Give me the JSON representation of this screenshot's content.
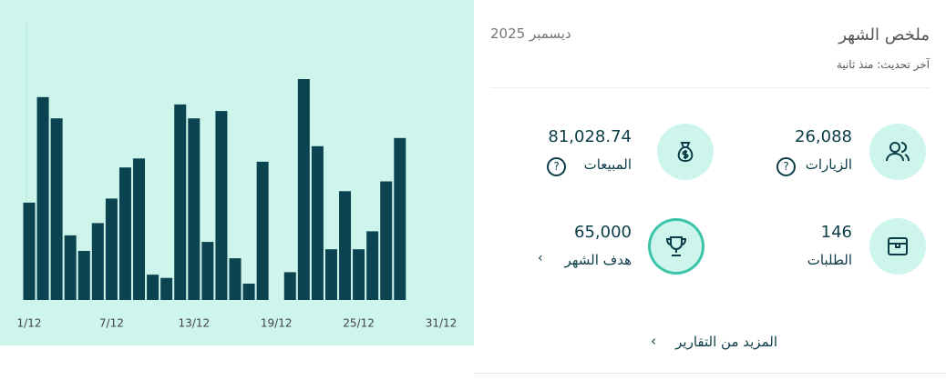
{
  "chart_data": {
    "type": "bar",
    "categories": [
      "1/12",
      null,
      null,
      null,
      null,
      null,
      "7/12",
      null,
      null,
      null,
      null,
      null,
      "13/12",
      null,
      null,
      null,
      null,
      null,
      "19/12",
      null,
      null,
      null,
      null,
      null,
      "25/12",
      null,
      null,
      null,
      null,
      null,
      "31/12"
    ],
    "values": [
      119,
      248,
      222,
      79,
      60,
      94,
      124,
      162,
      173,
      31,
      27,
      239,
      222,
      71,
      231,
      51,
      20,
      169,
      0,
      34,
      270,
      188,
      62,
      133,
      62,
      84,
      145,
      198,
      null,
      null,
      null
    ],
    "color": "#0b4450",
    "ylim": [
      0,
      300
    ]
  },
  "summary": {
    "title": "ملخص الشهر",
    "period": "ديسمبر 2025",
    "updated": "آخر تحديث: منذ ثانية",
    "stats": [
      {
        "value": "26,088",
        "label": "الزيارات"
      },
      {
        "value": "81,028.74",
        "label": "المبيعات"
      },
      {
        "value": "146",
        "label": "الطلبات"
      },
      {
        "value": "65,000",
        "label": "هدف الشهر"
      }
    ],
    "more_link": "المزيد من التقارير"
  }
}
